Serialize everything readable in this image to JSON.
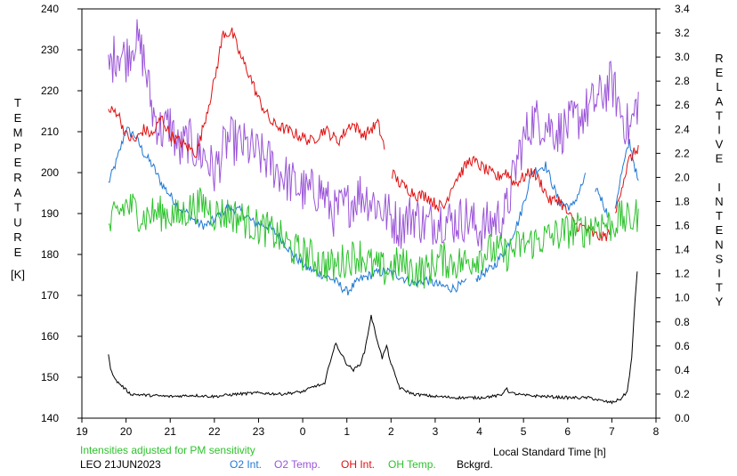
{
  "chart_data": {
    "type": "line",
    "title": "",
    "xlabel": "Local Standard Time [h]",
    "ylabel_left_letters": [
      "T",
      "E",
      "M",
      "P",
      "E",
      "R",
      "A",
      "T",
      "U",
      "R",
      "E"
    ],
    "ylabel_left_unit": "[K]",
    "ylabel_right_letters": [
      "R",
      "E",
      "L",
      "A",
      "T",
      "I",
      "V",
      "E",
      "",
      "I",
      "N",
      "T",
      "E",
      "N",
      "S",
      "I",
      "T",
      "Y"
    ],
    "xlim": [
      19,
      32
    ],
    "ylim_left": [
      140,
      240
    ],
    "ylim_right": [
      0.0,
      3.4
    ],
    "x_ticks": [
      19,
      20,
      21,
      22,
      23,
      24,
      25,
      26,
      27,
      28,
      29,
      30,
      31,
      32
    ],
    "x_tick_labels": [
      "19",
      "20",
      "21",
      "22",
      "23",
      "0",
      "1",
      "2",
      "3",
      "4",
      "5",
      "6",
      "7",
      "8"
    ],
    "y_left_ticks": [
      "140",
      "150",
      "160",
      "170",
      "180",
      "190",
      "200",
      "210",
      "220",
      "230",
      "240"
    ],
    "y_right_ticks": [
      "0.0",
      "0.2",
      "0.4",
      "0.6",
      "0.8",
      "1.0",
      "1.2",
      "1.4",
      "1.6",
      "1.8",
      "2.0",
      "2.2",
      "2.4",
      "2.6",
      "2.8",
      "3.0",
      "3.2",
      "3.4"
    ],
    "grid": false,
    "series": [
      {
        "name": "O2 Int.",
        "color": "#1f78d4",
        "axis": "right",
        "noise": 0.04,
        "x": [
          19.6,
          19.8,
          20.0,
          20.2,
          20.4,
          20.6,
          20.8,
          21.0,
          21.2,
          21.4,
          21.6,
          21.8,
          22.0,
          22.3,
          22.6,
          22.9,
          23.2,
          23.5,
          23.8,
          24.1,
          24.4,
          24.7,
          25.0,
          25.3,
          25.6,
          25.9,
          26.2,
          26.5,
          26.8,
          27.1,
          27.4,
          27.7,
          28.0,
          28.3,
          28.6,
          28.9,
          29.2,
          29.5,
          29.8,
          30.1,
          30.4,
          30.7,
          31.0,
          31.2,
          31.4,
          31.6
        ],
        "y": [
          1.95,
          2.15,
          2.4,
          2.35,
          2.2,
          2.1,
          1.95,
          1.85,
          1.75,
          1.7,
          1.62,
          1.6,
          1.65,
          1.75,
          1.72,
          1.62,
          1.6,
          1.5,
          1.35,
          1.25,
          1.2,
          1.15,
          1.05,
          1.15,
          1.2,
          1.22,
          1.18,
          1.12,
          1.15,
          1.1,
          1.08,
          1.12,
          1.18,
          1.25,
          1.4,
          1.65,
          2.05,
          2.1,
          1.8,
          1.75,
          2.0,
          1.88,
          1.6,
          2.0,
          2.3,
          1.95
        ],
        "gaps": [
          [
            27.7,
            27.9
          ],
          [
            30.4,
            30.6
          ],
          [
            30.9,
            31.05
          ]
        ]
      },
      {
        "name": "O2 Temp.",
        "color": "#9b55d8",
        "axis": "left",
        "noise": 6,
        "x": [
          19.6,
          19.8,
          20.0,
          20.2,
          20.4,
          20.6,
          20.8,
          21.0,
          21.2,
          21.4,
          21.6,
          21.8,
          22.0,
          22.3,
          22.6,
          22.9,
          23.2,
          23.5,
          23.8,
          24.1,
          24.4,
          24.7,
          25.0,
          25.3,
          25.6,
          25.9,
          26.2,
          26.5,
          26.8,
          27.1,
          27.4,
          27.7,
          28.0,
          28.3,
          28.6,
          28.9,
          29.2,
          29.5,
          29.8,
          30.1,
          30.4,
          30.7,
          31.0,
          31.2,
          31.4,
          31.6
        ],
        "y": [
          225,
          230,
          228,
          233,
          228,
          215,
          210,
          212,
          205,
          208,
          205,
          204,
          200,
          208,
          207,
          205,
          203,
          200,
          197,
          195,
          196,
          190,
          192,
          195,
          193,
          190,
          187,
          190,
          187,
          189,
          188,
          189,
          186,
          188,
          190,
          205,
          213,
          212,
          210,
          212,
          215,
          218,
          222,
          215,
          210,
          218
        ],
        "gaps": []
      },
      {
        "name": "OH Int.",
        "color": "#e01010",
        "axis": "right",
        "noise": 0.05,
        "x": [
          19.6,
          19.8,
          20.0,
          20.2,
          20.4,
          20.6,
          20.8,
          21.0,
          21.2,
          21.4,
          21.6,
          21.8,
          22.0,
          22.2,
          22.4,
          22.6,
          22.8,
          23.0,
          23.3,
          23.6,
          23.9,
          24.2,
          24.5,
          24.8,
          25.1,
          25.4,
          25.7,
          26.0,
          26.2,
          26.4,
          26.6,
          26.8,
          27.0,
          27.2,
          27.4,
          27.6,
          27.8,
          28.0,
          28.2,
          28.4,
          28.6,
          28.8,
          29.0,
          29.2,
          29.4,
          29.6,
          29.8,
          30.0,
          30.2,
          30.4,
          30.6,
          30.8,
          31.0,
          31.2,
          31.4,
          31.6
        ],
        "y": [
          2.55,
          2.55,
          2.35,
          2.3,
          2.4,
          2.35,
          2.5,
          2.35,
          2.3,
          2.25,
          2.2,
          2.5,
          2.8,
          3.2,
          3.2,
          3.0,
          2.85,
          2.65,
          2.45,
          2.4,
          2.35,
          2.3,
          2.4,
          2.3,
          2.45,
          2.35,
          2.45,
          2.05,
          1.95,
          1.9,
          1.85,
          1.85,
          1.78,
          1.75,
          1.95,
          2.05,
          2.15,
          2.1,
          2.05,
          2.0,
          2.05,
          1.95,
          2.0,
          2.05,
          1.95,
          1.8,
          1.82,
          1.7,
          1.6,
          1.58,
          1.52,
          1.5,
          1.55,
          1.9,
          2.15,
          2.25
        ],
        "gaps": [
          [
            25.85,
            26.0
          ],
          [
            30.95,
            31.05
          ]
        ]
      },
      {
        "name": "OH Temp.",
        "color": "#2ec22e",
        "axis": "left",
        "noise": 4.5,
        "x": [
          19.6,
          19.8,
          20.0,
          20.2,
          20.4,
          20.6,
          20.8,
          21.0,
          21.2,
          21.4,
          21.6,
          21.8,
          22.0,
          22.3,
          22.6,
          22.9,
          23.2,
          23.5,
          23.8,
          24.1,
          24.4,
          24.7,
          25.0,
          25.3,
          25.6,
          25.9,
          26.2,
          26.5,
          26.8,
          27.1,
          27.4,
          27.7,
          28.0,
          28.3,
          28.6,
          28.9,
          29.2,
          29.5,
          29.8,
          30.1,
          30.4,
          30.7,
          31.0,
          31.2,
          31.4,
          31.6
        ],
        "y": [
          186,
          190,
          192,
          191,
          189,
          190,
          190,
          190,
          189,
          191,
          192,
          192,
          190,
          190,
          189,
          187,
          186,
          184,
          181,
          180,
          178,
          177,
          179,
          180,
          177,
          176,
          178,
          176,
          176,
          179,
          178,
          178,
          180,
          181,
          180,
          182,
          183,
          184,
          185,
          186,
          186,
          188,
          187,
          189,
          188,
          190
        ],
        "gaps": []
      },
      {
        "name": "Bckgrd.",
        "color": "#000000",
        "axis": "right",
        "noise": 0.012,
        "x": [
          19.6,
          19.65,
          19.75,
          19.9,
          20.1,
          20.5,
          21.0,
          21.5,
          22.0,
          22.5,
          23.0,
          23.5,
          24.0,
          24.3,
          24.5,
          24.6,
          24.75,
          24.85,
          25.0,
          25.15,
          25.3,
          25.4,
          25.5,
          25.55,
          25.65,
          25.8,
          25.9,
          26.0,
          26.2,
          26.5,
          27.0,
          27.5,
          28.0,
          28.5,
          28.6,
          28.7,
          29.0,
          29.5,
          30.0,
          30.5,
          30.8,
          31.0,
          31.2,
          31.35,
          31.45,
          31.52,
          31.58
        ],
        "y": [
          0.52,
          0.42,
          0.32,
          0.27,
          0.2,
          0.19,
          0.18,
          0.19,
          0.18,
          0.2,
          0.21,
          0.2,
          0.22,
          0.27,
          0.28,
          0.45,
          0.62,
          0.55,
          0.45,
          0.4,
          0.45,
          0.55,
          0.75,
          0.85,
          0.7,
          0.5,
          0.6,
          0.45,
          0.25,
          0.2,
          0.18,
          0.17,
          0.17,
          0.19,
          0.25,
          0.21,
          0.19,
          0.18,
          0.17,
          0.17,
          0.14,
          0.13,
          0.16,
          0.22,
          0.5,
          0.95,
          1.25
        ],
        "gaps": []
      }
    ]
  },
  "footer": {
    "note": "Intensities adjusted for PM sensitivity",
    "station": "LEO 21JUN2023",
    "legend": [
      {
        "label": "O2 Int.",
        "color": "#1f78d4"
      },
      {
        "label": "O2 Temp.",
        "color": "#9b55d8"
      },
      {
        "label": "OH Int.",
        "color": "#e01010"
      },
      {
        "label": "OH Temp.",
        "color": "#2ec22e"
      },
      {
        "label": "Bckgrd.",
        "color": "#000000"
      }
    ]
  }
}
